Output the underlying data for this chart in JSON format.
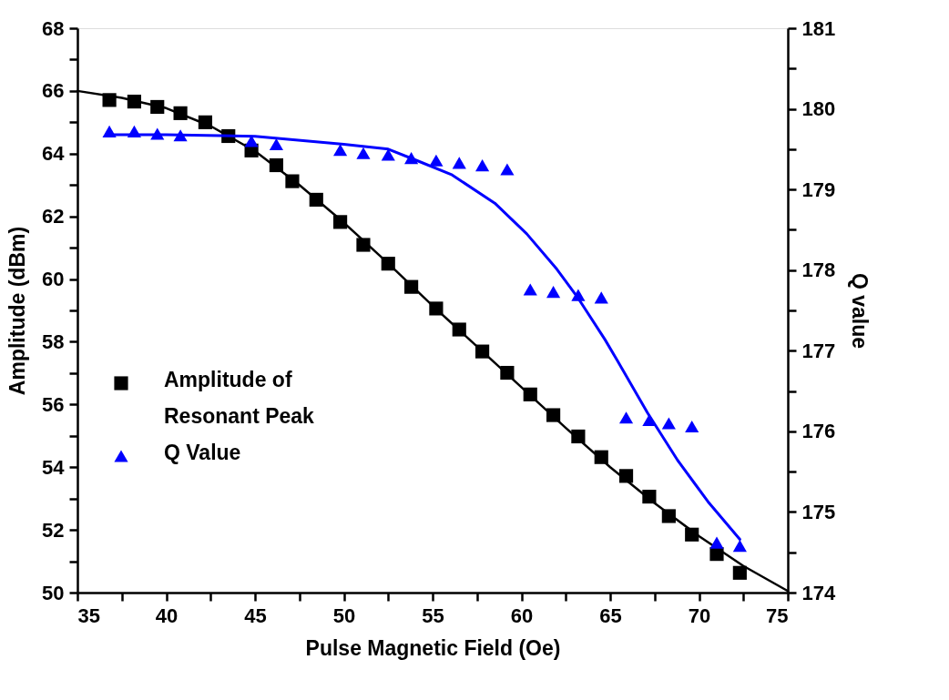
{
  "chart_data": {
    "type": "scatter",
    "xlabel": "Pulse Magnetic Field (Oe)",
    "ylabel": "Amplitude (dBm)",
    "y2label": "Q value",
    "xlim": [
      35,
      75
    ],
    "xticks": [
      35,
      {
        "value": 37.5,
        "label": null
      },
      40,
      {
        "value": 42.5,
        "label": null
      },
      45,
      {
        "value": 47.5,
        "label": null
      },
      50,
      {
        "value": 52.5,
        "label": null
      },
      55,
      {
        "value": 57.5,
        "label": null
      },
      60,
      {
        "value": 62.5,
        "label": null
      },
      65,
      {
        "value": 67.5,
        "label": null
      },
      70,
      {
        "value": 72.5,
        "label": null
      },
      75
    ],
    "ylim": [
      50,
      68
    ],
    "yticks": [
      50,
      {
        "value": 51,
        "label": null
      },
      52,
      {
        "value": 53,
        "label": null
      },
      54,
      {
        "value": 55,
        "label": null
      },
      56,
      {
        "value": 57,
        "label": null
      },
      58,
      {
        "value": 59,
        "label": null
      },
      60,
      {
        "value": 61,
        "label": null
      },
      62,
      {
        "value": 63,
        "label": null
      },
      64,
      {
        "value": 65,
        "label": null
      },
      66,
      {
        "value": 67,
        "label": null
      },
      68
    ],
    "y2lim": [
      174,
      181
    ],
    "y2ticks": [
      174,
      {
        "value": 174.5,
        "label": null
      },
      175,
      {
        "value": 175.5,
        "label": null
      },
      176,
      {
        "value": 176.5,
        "label": null
      },
      177,
      {
        "value": 177.5,
        "label": null
      },
      178,
      {
        "value": 178.5,
        "label": null
      },
      179,
      {
        "value": 179.5,
        "label": null
      },
      180,
      {
        "value": 180.5,
        "label": null
      },
      181
    ],
    "grid": false,
    "legend": "bottom left",
    "series": [
      {
        "name": "Amplitude of\nResonant Peak",
        "marker": "square",
        "color": "#000000",
        "x": [
          36.8,
          38.2,
          39.5,
          40.8,
          42.2,
          43.5,
          44.8,
          46.2,
          47.1,
          48.45,
          49.8,
          51.1,
          52.5,
          53.8,
          55.2,
          56.5,
          57.8,
          59.2,
          60.5,
          61.8,
          63.2,
          64.5,
          65.9,
          67.2,
          68.3,
          69.6,
          71.0,
          72.3
        ],
        "values": [
          65.71,
          65.66,
          65.49,
          65.29,
          65.0,
          64.56,
          64.1,
          63.63,
          63.12,
          62.53,
          61.82,
          61.09,
          60.49,
          59.75,
          59.06,
          58.39,
          57.69,
          57.01,
          56.32,
          55.66,
          54.98,
          54.32,
          53.72,
          53.06,
          52.44,
          51.85,
          51.23,
          50.63
        ]
      },
      {
        "name": "Q Value",
        "marker": "triangle",
        "color": "#0000ff",
        "axis": "y2",
        "x": [
          36.8,
          38.2,
          39.5,
          40.8,
          44.8,
          46.2,
          49.8,
          51.1,
          52.5,
          53.8,
          55.2,
          56.5,
          57.8,
          59.2,
          60.5,
          61.8,
          63.2,
          64.5,
          65.9,
          67.2,
          68.3,
          69.6,
          71.0,
          72.3
        ],
        "values": [
          179.72,
          179.72,
          179.69,
          179.67,
          179.6,
          179.56,
          179.49,
          179.45,
          179.43,
          179.39,
          179.36,
          179.33,
          179.3,
          179.25,
          177.76,
          177.73,
          177.69,
          177.66,
          176.17,
          176.14,
          176.1,
          176.06,
          174.62,
          174.58
        ]
      },
      {
        "type": "line",
        "color": "#000000",
        "x": [
          35,
          37.5,
          40,
          42.5,
          45,
          47.5,
          50,
          52.5,
          55,
          57.5,
          60,
          62.5,
          65,
          67.5,
          70,
          72.5,
          75
        ],
        "values": [
          66.0,
          65.78,
          65.45,
          64.88,
          64.08,
          63.0,
          61.8,
          60.5,
          59.15,
          57.85,
          56.55,
          55.25,
          54.0,
          52.85,
          51.8,
          50.85,
          50.05
        ]
      },
      {
        "type": "line",
        "color": "#0000ff",
        "axis": "y2",
        "x": [
          36.8,
          40,
          45,
          50,
          52.5,
          54.1,
          56.1,
          58.5,
          60.3,
          62.0,
          63.2,
          64.7,
          65.4,
          67.1,
          68.8,
          70.5,
          72.3
        ],
        "values": [
          179.68,
          179.68,
          179.66,
          179.56,
          179.5,
          179.36,
          179.18,
          178.83,
          178.45,
          178.01,
          177.65,
          177.14,
          176.88,
          176.23,
          175.64,
          175.13,
          174.66
        ]
      }
    ]
  }
}
